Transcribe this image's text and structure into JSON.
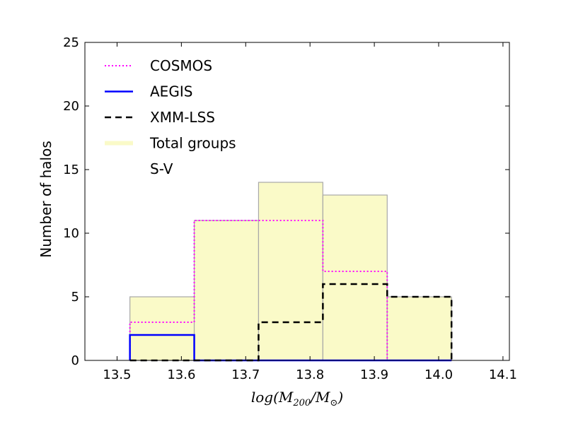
{
  "chart_data": {
    "type": "bar",
    "subtype": "histogram",
    "bin_edges": [
      13.52,
      13.62,
      13.72,
      13.82,
      13.92,
      14.02
    ],
    "series": [
      {
        "name": "Total groups",
        "style": "filled",
        "color": "#fafac8",
        "values": [
          5,
          11,
          14,
          13,
          5
        ]
      },
      {
        "name": "COSMOS",
        "style": "dotted-step",
        "color": "#ff00ff",
        "values": [
          3,
          11,
          11,
          7,
          0
        ]
      },
      {
        "name": "AEGIS",
        "style": "solid-step",
        "color": "#0000ff",
        "values": [
          2,
          0,
          0,
          0,
          0
        ]
      },
      {
        "name": "XMM-LSS",
        "style": "dashed-step",
        "color": "#000000",
        "values": [
          0,
          0,
          3,
          6,
          5
        ]
      },
      {
        "name": "S-V",
        "style": "none",
        "color": "#ffffff",
        "values": [
          0,
          0,
          0,
          0,
          0
        ]
      }
    ],
    "legend_order": [
      "COSMOS",
      "AEGIS",
      "XMM-LSS",
      "Total groups",
      "S-V"
    ],
    "xlabel": {
      "prefix": "log(M",
      "sub1": "200",
      "mid": "/M",
      "sub2": "⊙",
      "suffix": ")"
    },
    "ylabel": "Number of halos",
    "xlim": [
      13.45,
      14.11
    ],
    "ylim": [
      0,
      25
    ],
    "xticks": [
      "13.5",
      "13.6",
      "13.7",
      "13.8",
      "13.9",
      "14.0",
      "14.1"
    ],
    "yticks": [
      "0",
      "5",
      "10",
      "15",
      "20",
      "25"
    ],
    "legend_position": "top-left",
    "grid": false
  }
}
